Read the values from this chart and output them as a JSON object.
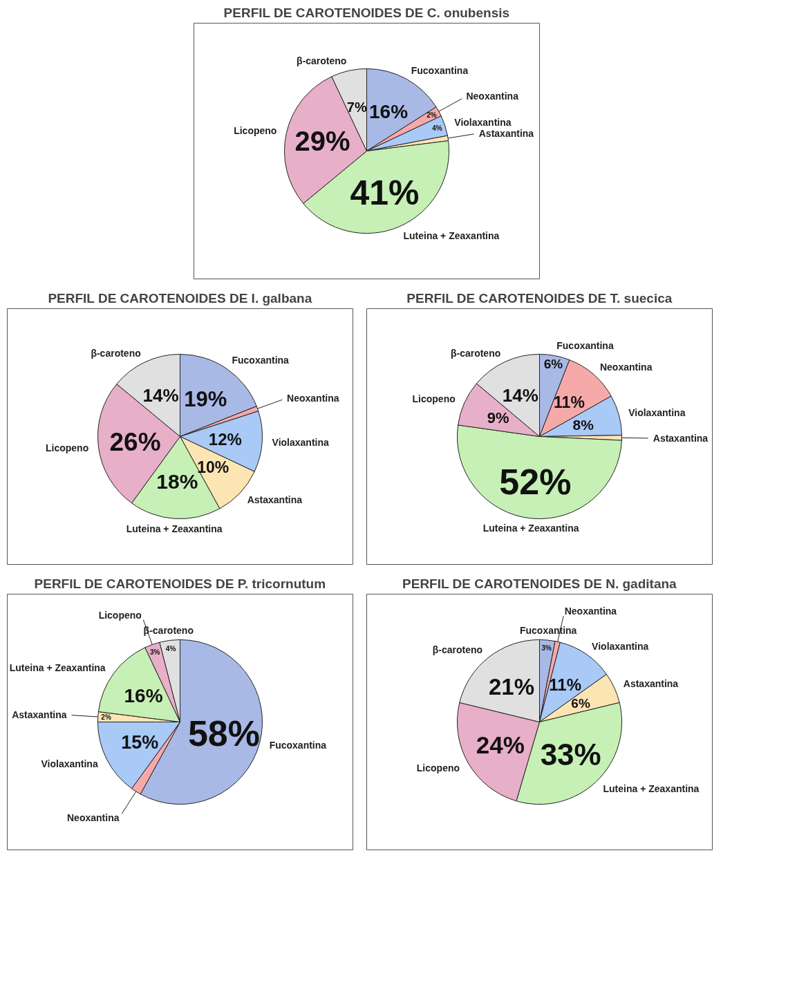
{
  "chart_data": [
    {
      "type": "pie",
      "title": "PERFIL DE CAROTENOIDES DE C. onubensis",
      "categories": [
        "Fucoxantina",
        "Neoxantina",
        "Violaxantina",
        "Astaxantina",
        "Luteina + Zeaxantina",
        "Licopeno",
        "β-caroteno"
      ],
      "values": [
        16,
        2,
        4,
        1,
        41,
        29,
        7
      ],
      "value_labels": [
        "16%",
        "2%",
        "4%",
        null,
        "41%",
        "29%",
        "7%"
      ],
      "colors": [
        "#a9b9e6",
        "#f6a9a9",
        "#a9c9f7",
        "#fde5b3",
        "#c6f0b5",
        "#e8afc9",
        "#e0e0e0"
      ]
    },
    {
      "type": "pie",
      "title": "PERFIL DE CAROTENOIDES DE I. galbana",
      "categories": [
        "Fucoxantina",
        "Neoxantina",
        "Violaxantina",
        "Astaxantina",
        "Luteina + Zeaxantina",
        "Licopeno",
        "β-caroteno"
      ],
      "values": [
        19,
        1,
        12,
        10,
        18,
        26,
        14
      ],
      "value_labels": [
        "19%",
        null,
        "12%",
        "10%",
        "18%",
        "26%",
        "14%"
      ],
      "colors": [
        "#a9b9e6",
        "#f6a9a9",
        "#a9c9f7",
        "#fde5b3",
        "#c6f0b5",
        "#e8afc9",
        "#e0e0e0"
      ]
    },
    {
      "type": "pie",
      "title": "PERFIL DE CAROTENOIDES DE T. suecica",
      "categories": [
        "Fucoxantina",
        "Neoxantina",
        "Violaxantina",
        "Astaxantina",
        "Luteina + Zeaxantina",
        "Licopeno",
        "β-caroteno"
      ],
      "values": [
        6,
        11,
        8,
        1,
        52,
        9,
        14
      ],
      "value_labels": [
        "6%",
        "11%",
        "8%",
        null,
        "52%",
        "9%",
        "14%"
      ],
      "colors": [
        "#a9b9e6",
        "#f6a9a9",
        "#a9c9f7",
        "#fde5b3",
        "#c6f0b5",
        "#e8afc9",
        "#e0e0e0"
      ]
    },
    {
      "type": "pie",
      "title": "PERFIL DE CAROTENOIDES DE P. tricornutum",
      "categories": [
        "Fucoxantina",
        "Neoxantina",
        "Violaxantina",
        "Astaxantina",
        "Luteina + Zeaxantina",
        "Licopeno",
        "β-caroteno"
      ],
      "values": [
        58,
        2,
        15,
        2,
        16,
        3,
        4
      ],
      "value_labels": [
        "58%",
        null,
        "15%",
        "2%",
        "16%",
        "3%",
        "4%"
      ],
      "colors": [
        "#a9b9e6",
        "#f6a9a9",
        "#a9c9f7",
        "#fde5b3",
        "#c6f0b5",
        "#e8afc9",
        "#e0e0e0"
      ]
    },
    {
      "type": "pie",
      "title": "PERFIL DE CAROTENOIDES DE N. gaditana",
      "categories": [
        "Fucoxantina",
        "Neoxantina",
        "Violaxantina",
        "Astaxantina",
        "Luteina + Zeaxantina",
        "Licopeno",
        "β-caroteno"
      ],
      "values": [
        3,
        1,
        11,
        6,
        33,
        24,
        21
      ],
      "value_labels": [
        "3%",
        null,
        "11%",
        "6%",
        "33%",
        "24%",
        "21%"
      ],
      "colors": [
        "#a9b9e6",
        "#f6a9a9",
        "#a9c9f7",
        "#fde5b3",
        "#c6f0b5",
        "#e8afc9",
        "#e0e0e0"
      ]
    }
  ]
}
